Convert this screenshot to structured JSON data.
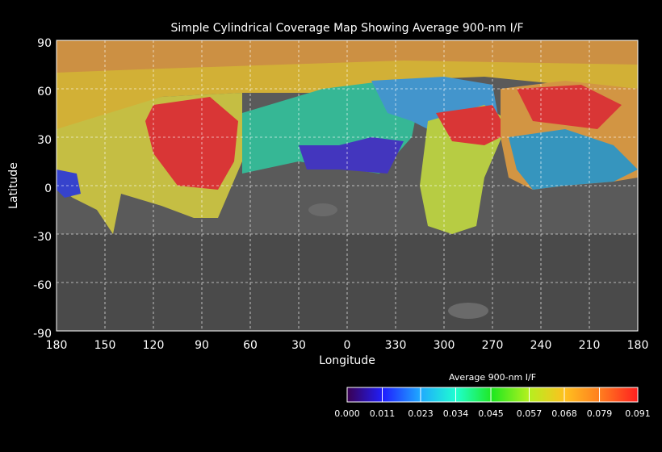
{
  "map": {
    "title": "Simple Cylindrical Coverage Map Showing Average 900-nm I/F",
    "x_label": "Longitude",
    "y_label": "Latitude",
    "lat_ticks": [
      90,
      60,
      30,
      0,
      -30,
      -60,
      -90
    ],
    "lon_ticks": [
      180,
      150,
      120,
      90,
      60,
      30,
      0,
      330,
      300,
      270,
      240,
      210,
      180
    ]
  },
  "colorbar": {
    "label": "Average 900-nm I/F",
    "ticks": [
      {
        "value": 0,
        "label": "0.000"
      },
      {
        "value": 0.011,
        "label": "0.011"
      },
      {
        "value": 0.023,
        "label": "0.023"
      },
      {
        "value": 0.034,
        "label": "0.034"
      },
      {
        "value": 0.045,
        "label": "0.045"
      },
      {
        "value": 0.057,
        "label": "0.057"
      },
      {
        "value": 0.068,
        "label": "0.068"
      },
      {
        "value": 0.079,
        "label": "0.079"
      },
      {
        "value": 0.091,
        "label": "0.091"
      }
    ],
    "colors": [
      "#3a0050",
      "#1f1fff",
      "#1fa8ff",
      "#1fffd0",
      "#1fe81f",
      "#b4f01f",
      "#ffc01f",
      "#ff7a1f",
      "#ff1f1f"
    ]
  }
}
